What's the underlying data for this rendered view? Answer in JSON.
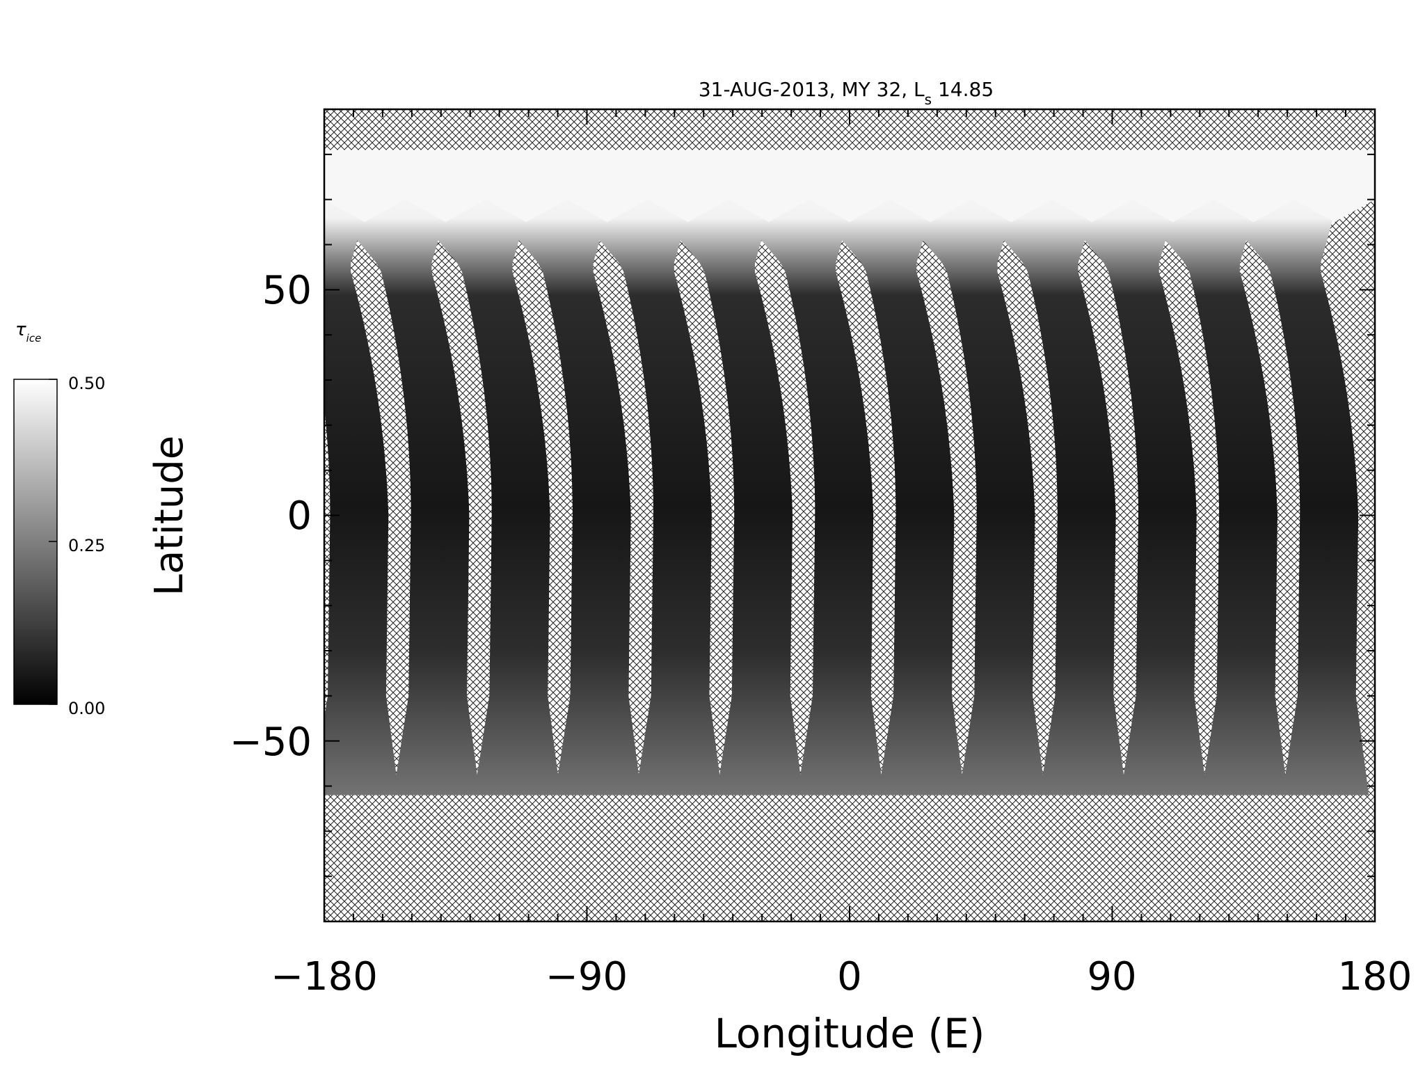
{
  "chart_data": {
    "type": "heatmap",
    "title": {
      "main": "31-AUG-2013, MY 32,  L",
      "subscript": "s",
      "value": " 14.85"
    },
    "xlabel": "Longitude (E)",
    "ylabel": "Latitude",
    "xlim": [
      -180,
      180
    ],
    "ylim": [
      -90,
      90
    ],
    "xticks": [
      -180,
      -90,
      0,
      90,
      180
    ],
    "xtick_labels": [
      "−180",
      "−90",
      "0",
      "90",
      "180"
    ],
    "yticks": [
      -50,
      0,
      50
    ],
    "ytick_labels": [
      "−50",
      "0",
      "50"
    ],
    "x_minor_step": 10,
    "y_minor_step": 10,
    "missing_data_pattern": "cross-hatch",
    "colorbar": {
      "label_symbol": "τ",
      "label_subscript": "ice",
      "range": [
        0.0,
        0.5
      ],
      "ticks": [
        0.0,
        0.25,
        0.5
      ],
      "tick_labels": [
        "0.00",
        "0.25",
        "0.50"
      ],
      "colormap": "grayscale",
      "colors": {
        "low": "#000000",
        "high": "#ffffff"
      }
    },
    "swaths": {
      "count": 13,
      "polar_cap_ice_lat_min": 62,
      "coverage_lat_range": [
        -63,
        80
      ],
      "typical_value_midlat": 0.05,
      "typical_value_polar": 0.5
    }
  }
}
